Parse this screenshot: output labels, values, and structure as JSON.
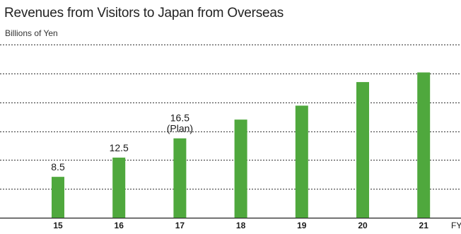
{
  "chart_data": {
    "type": "bar",
    "title": "Revenues from Visitors to Japan from Overseas",
    "ylabel": "Billions of Yen",
    "xlabel": "FY",
    "categories": [
      "15",
      "16",
      "17",
      "18",
      "19",
      "20",
      "21"
    ],
    "values": [
      8.5,
      12.5,
      16.5,
      20.4,
      23.3,
      28.2,
      30.2
    ],
    "data_labels": [
      "8.5",
      "12.5",
      "16.5\n(Plan)",
      "",
      "",
      "",
      ""
    ],
    "ylim": [
      0,
      36
    ],
    "grid": true,
    "bar_color": "#4fa83d",
    "legend": "none"
  }
}
